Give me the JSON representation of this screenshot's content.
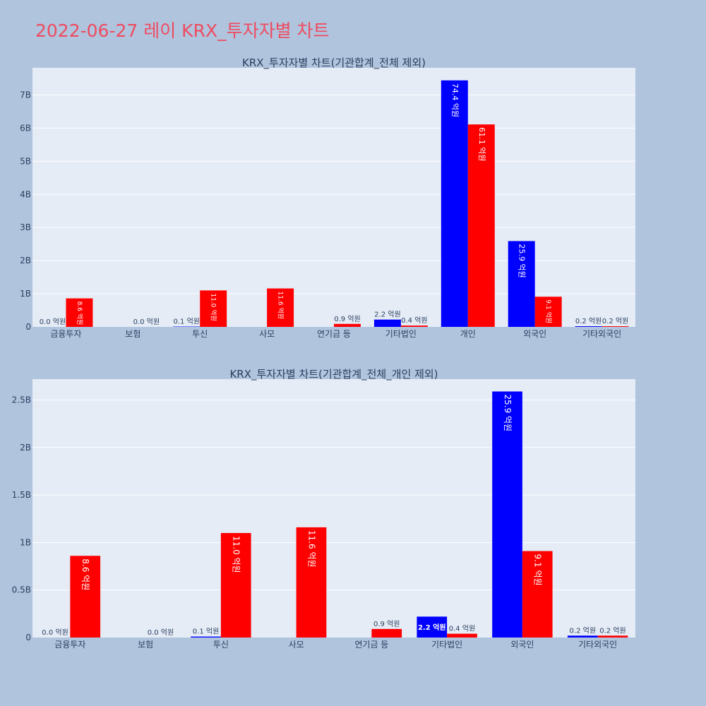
{
  "page": {
    "title": "2022-06-27 레이 KRX_투자자별 차트"
  },
  "colors": {
    "buy": "#0000ff",
    "sell": "#ff0000",
    "plot_bg": "#e5ecf6",
    "page_bg": "#b0c4de",
    "title": "#ef4b5f"
  },
  "chart_data": [
    {
      "type": "bar",
      "title": "KRX_투자자별 차트(기관합계_전체 제외)",
      "categories": [
        "금융투자",
        "보험",
        "투신",
        "사모",
        "연기금 등",
        "기타법인",
        "개인",
        "외국인",
        "기타외국인"
      ],
      "series": [
        {
          "color": "#0000ff",
          "values": [
            0.0,
            0.0,
            0.01,
            0.0,
            0.0,
            0.22,
            7.44,
            2.59,
            0.02
          ]
        },
        {
          "color": "#ff0000",
          "values": [
            0.86,
            0.0,
            1.1,
            1.16,
            0.09,
            0.04,
            6.11,
            0.91,
            0.02
          ]
        }
      ],
      "data_labels": [
        [
          "0.0 억원",
          "",
          "0.1 억원",
          "",
          "",
          "2.2 억원",
          "74.4 억원",
          "25.9 억원",
          "0.2 억원"
        ],
        [
          "8.6 억원",
          "0.0 억원",
          "11.0 억원",
          "11.6 억원",
          "0.9 억원",
          "0.4 억원",
          "61.1 억원",
          "9.1 억원",
          "0.2 억원"
        ]
      ],
      "y_unit": "B",
      "y_ticks": [
        0,
        1,
        2,
        3,
        4,
        5,
        6,
        7
      ],
      "y_tick_labels": [
        "0",
        "1B",
        "2B",
        "3B",
        "4B",
        "5B",
        "6B",
        "7B"
      ],
      "ylim": [
        0,
        7.82
      ],
      "grid": true
    },
    {
      "type": "bar",
      "title": "KRX_투자자별 차트(기관합계_전체_개인 제외)",
      "categories": [
        "금융투자",
        "보험",
        "투신",
        "사모",
        "연기금 등",
        "기타법인",
        "외국인",
        "기타외국인"
      ],
      "series": [
        {
          "color": "#0000ff",
          "values": [
            0.0,
            0.0,
            0.01,
            0.0,
            0.0,
            0.22,
            2.59,
            0.02
          ]
        },
        {
          "color": "#ff0000",
          "values": [
            0.86,
            0.0,
            1.1,
            1.16,
            0.09,
            0.04,
            0.91,
            0.02
          ]
        }
      ],
      "data_labels": [
        [
          "0.0 억원",
          "",
          "0.1 억원",
          "",
          "",
          "2.2 억원",
          "25.9 억원",
          "0.2 억원"
        ],
        [
          "8.6 억원",
          "0.0 억원",
          "11.0 억원",
          "11.6 억원",
          "0.9 억원",
          "0.4 억원",
          "9.1 억원",
          "0.2 억원"
        ]
      ],
      "y_unit": "B",
      "y_ticks": [
        0,
        0.5,
        1,
        1.5,
        2,
        2.5
      ],
      "y_tick_labels": [
        "0",
        "0.5B",
        "1B",
        "1.5B",
        "2B",
        "2.5B"
      ],
      "ylim": [
        0,
        2.72
      ],
      "grid": true
    }
  ]
}
